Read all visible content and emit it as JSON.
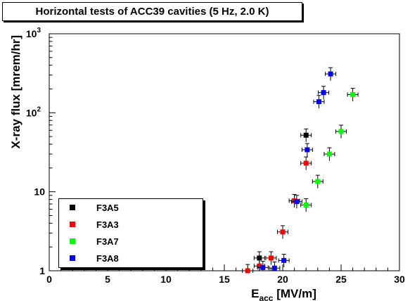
{
  "chart_data": {
    "type": "scatter",
    "title": "Horizontal tests of ACC39 cavities (5 Hz, 2.0 K)",
    "xlabel_main": "E",
    "xlabel_sub": "acc",
    "xlabel_unit": " [MV/m]",
    "ylabel": "X-ray flux [mrem/hr]",
    "xlim": [
      0,
      30
    ],
    "ylim": [
      1,
      1000
    ],
    "y_scale": "log",
    "grid": false,
    "legend_position": "bottom-left",
    "x_ticks": [
      "0",
      "5",
      "10",
      "15",
      "20",
      "25",
      "30"
    ],
    "y_ticks": [
      {
        "base": "1",
        "exp": ""
      },
      {
        "base": "10",
        "exp": ""
      },
      {
        "base": "10",
        "exp": "2"
      },
      {
        "base": "10",
        "exp": "3"
      }
    ],
    "series": [
      {
        "name": "F3A5",
        "color": "#000000",
        "points": [
          [
            18,
            1.45
          ],
          [
            22,
            52
          ]
        ]
      },
      {
        "name": "F3A3",
        "color": "#ff0000",
        "points": [
          [
            17,
            1.0
          ],
          [
            18,
            1.15
          ],
          [
            19,
            1.45
          ],
          [
            20,
            3.1
          ],
          [
            21,
            7.7
          ],
          [
            22,
            23
          ]
        ]
      },
      {
        "name": "F3A7",
        "color": "#00ff00",
        "points": [
          [
            22,
            6.8
          ],
          [
            23,
            13.5
          ],
          [
            24,
            30
          ],
          [
            25,
            58
          ],
          [
            26,
            170
          ]
        ]
      },
      {
        "name": "F3A8",
        "color": "#0000ff",
        "points": [
          [
            18.3,
            1.1
          ],
          [
            19.3,
            1.08
          ],
          [
            20.1,
            1.35
          ],
          [
            21.2,
            7.5
          ],
          [
            22.1,
            34
          ],
          [
            23.1,
            138
          ],
          [
            23.5,
            180
          ],
          [
            24.1,
            310
          ]
        ]
      }
    ]
  }
}
